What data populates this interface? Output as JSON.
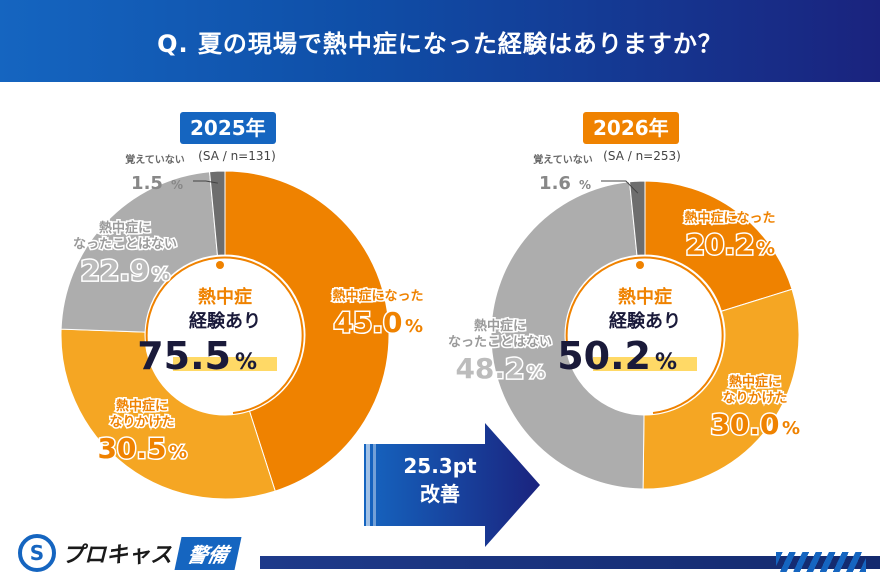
{
  "title": "Q. 夏の現場で熱中症になった経験はありますか？",
  "colors": {
    "header_blue": "#1565c0",
    "dark_orange": "#ef8200",
    "light_orange": "#f5a623",
    "gray": "#adadad",
    "dark_gray": "#6e6e6e",
    "navy": "#1e3a8a"
  },
  "comparison": {
    "improvement_value": "25.3pt",
    "improvement_label": "改善"
  },
  "brand": {
    "logo_name": "プロキャス",
    "logo_badge": "警備"
  },
  "chart_data": [
    {
      "type": "pie",
      "year_label": "2025年",
      "sample_note": "(SA / n=131)",
      "center_title_line1": "熱中症",
      "center_title_line2": "経験あり",
      "center_value": "75.5",
      "center_unit": "%",
      "slices": [
        {
          "label": "熱中症になった",
          "value": 45.0,
          "display": "45.0%",
          "color": "#ef8200"
        },
        {
          "label": "熱中症になりかけた",
          "value": 30.5,
          "display": "30.5%",
          "color": "#f5a623"
        },
        {
          "label": "熱中症になったことはない",
          "value": 22.9,
          "display": "22.9%",
          "color": "#adadad"
        },
        {
          "label": "覚えていない",
          "value": 1.5,
          "display": "1.5%",
          "color": "#6e6e6e"
        }
      ]
    },
    {
      "type": "pie",
      "year_label": "2026年",
      "sample_note": "(SA / n=253)",
      "center_title_line1": "熱中症",
      "center_title_line2": "経験あり",
      "center_value": "50.2",
      "center_unit": "%",
      "slices": [
        {
          "label": "熱中症になった",
          "value": 20.2,
          "display": "20.2%",
          "color": "#ef8200"
        },
        {
          "label": "熱中症になりかけた",
          "value": 30.0,
          "display": "30.0%",
          "color": "#f5a623"
        },
        {
          "label": "熱中症になったことはない",
          "value": 48.2,
          "display": "48.2%",
          "color": "#adadad"
        },
        {
          "label": "覚えていない",
          "value": 1.6,
          "display": "1.6%",
          "color": "#6e6e6e"
        }
      ]
    }
  ]
}
